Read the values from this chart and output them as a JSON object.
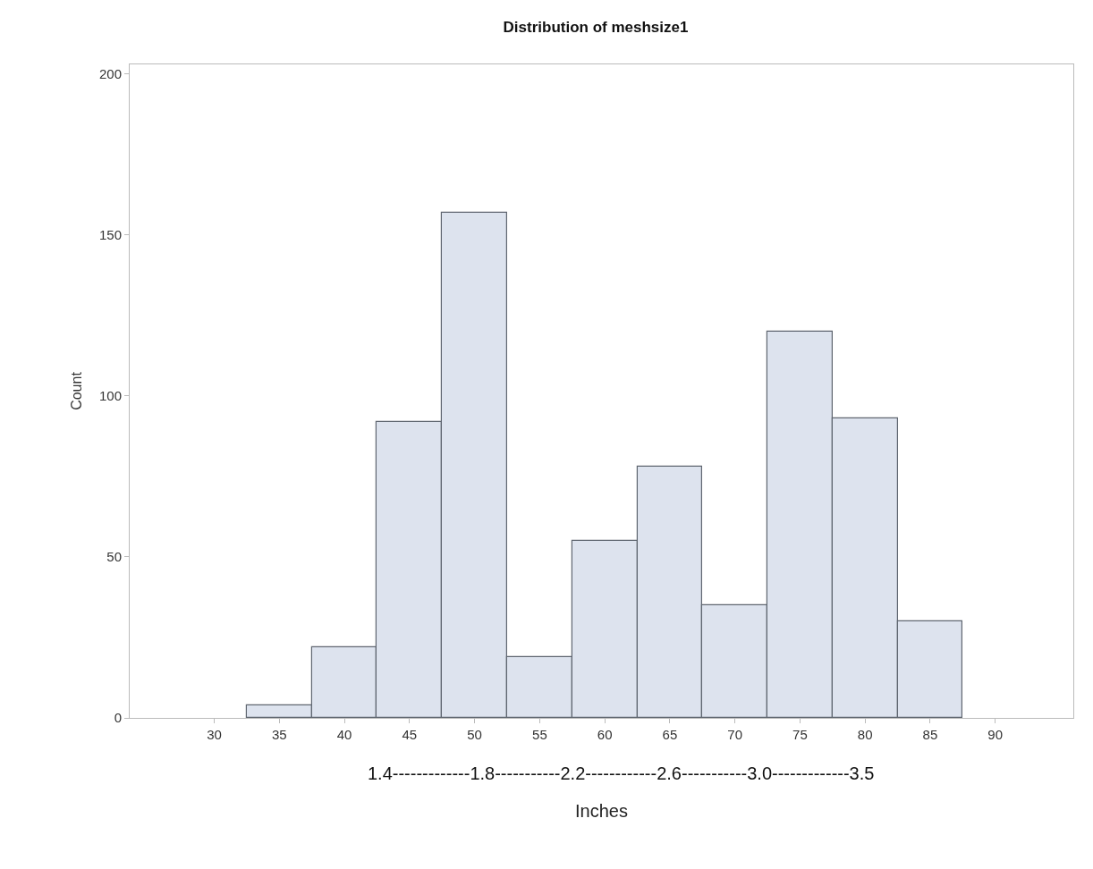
{
  "chart_data": {
    "type": "histogram",
    "title": "Distribution of meshsize1",
    "xlabel": "Inches",
    "ylabel": "Count",
    "bins": [
      32.5,
      37.5,
      42.5,
      47.5,
      52.5,
      57.5,
      62.5,
      67.5,
      72.5,
      77.5,
      82.5,
      87.5
    ],
    "values": [
      4,
      22,
      92,
      157,
      19,
      55,
      78,
      35,
      120,
      93,
      30
    ],
    "color": "#dde3ee",
    "xlim": [
      23.5,
      96
    ],
    "xticks": [
      30,
      35,
      40,
      45,
      50,
      55,
      60,
      65,
      70,
      75,
      80,
      85,
      90
    ],
    "ylim": [
      0,
      203
    ],
    "yticks": [
      0,
      50,
      100,
      150,
      200
    ],
    "annotations": [
      "1.4-------------1.8-----------2.2------------2.6-----------3.0-------------3.5"
    ]
  }
}
